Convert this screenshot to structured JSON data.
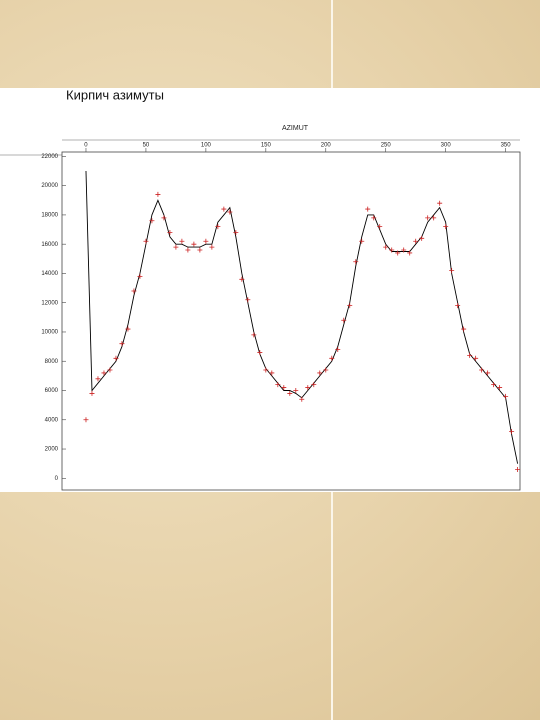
{
  "chart_data": {
    "type": "line",
    "title": "Кирпич азимуты",
    "x_label": "AZIMUT",
    "x": [
      0,
      5,
      10,
      15,
      20,
      25,
      30,
      35,
      40,
      45,
      50,
      55,
      60,
      65,
      70,
      75,
      80,
      85,
      90,
      95,
      100,
      105,
      110,
      115,
      120,
      125,
      130,
      135,
      140,
      145,
      150,
      155,
      160,
      165,
      170,
      175,
      180,
      185,
      190,
      195,
      200,
      205,
      210,
      215,
      220,
      225,
      230,
      235,
      240,
      245,
      250,
      255,
      260,
      265,
      270,
      275,
      280,
      285,
      290,
      295,
      300,
      305,
      310,
      315,
      320,
      325,
      330,
      335,
      340,
      345,
      350,
      355,
      360
    ],
    "series": [
      {
        "color": "#000000",
        "values": [
          21000,
          6000,
          6500,
          7000,
          7500,
          8000,
          9000,
          10500,
          12500,
          14000,
          16000,
          18000,
          19000,
          18000,
          16500,
          16000,
          16000,
          15800,
          15800,
          15800,
          16000,
          16000,
          17500,
          18000,
          18500,
          16500,
          14000,
          12000,
          10000,
          8500,
          7500,
          7000,
          6500,
          6000,
          6000,
          5800,
          5500,
          6000,
          6500,
          7000,
          7500,
          8000,
          9000,
          10500,
          12000,
          14500,
          16500,
          18000,
          18000,
          17000,
          16000,
          15500,
          15500,
          15500,
          15500,
          16000,
          16500,
          17500,
          18000,
          18500,
          17500,
          14000,
          12000,
          10000,
          8500,
          8000,
          7500,
          7000,
          6500,
          6000,
          5500,
          3000,
          1000
        ]
      },
      {
        "color": "#cc2222",
        "values": [
          4000,
          5800,
          6800,
          7200,
          7400,
          8200,
          9200,
          10200,
          12800,
          13800,
          16200,
          17600,
          19400,
          17800,
          16800,
          15800,
          16200,
          15600,
          16000,
          15600,
          16200,
          15800,
          17200,
          18400,
          18200,
          16800,
          13600,
          12200,
          9800,
          8600,
          7400,
          7200,
          6400,
          6200,
          5800,
          6000,
          5400,
          6200,
          6400,
          7200,
          7400,
          8200,
          8800,
          10800,
          11800,
          14800,
          16200,
          18400,
          17800,
          17200,
          15800,
          15600,
          15400,
          15600,
          15400,
          16200,
          16400,
          17800,
          17800,
          18800,
          17200,
          14200,
          11800,
          10200,
          8400,
          8200,
          7400,
          7200,
          6400,
          6200,
          5600,
          3200,
          600
        ]
      }
    ],
    "xlim": [
      -20,
      362
    ],
    "ylim": [
      -800,
      22300
    ],
    "xticks": [
      0,
      50,
      100,
      150,
      200,
      250,
      300,
      350
    ],
    "yticks": [
      0,
      2000,
      4000,
      6000,
      8000,
      10000,
      12000,
      14000,
      16000,
      18000,
      20000,
      22000
    ]
  }
}
